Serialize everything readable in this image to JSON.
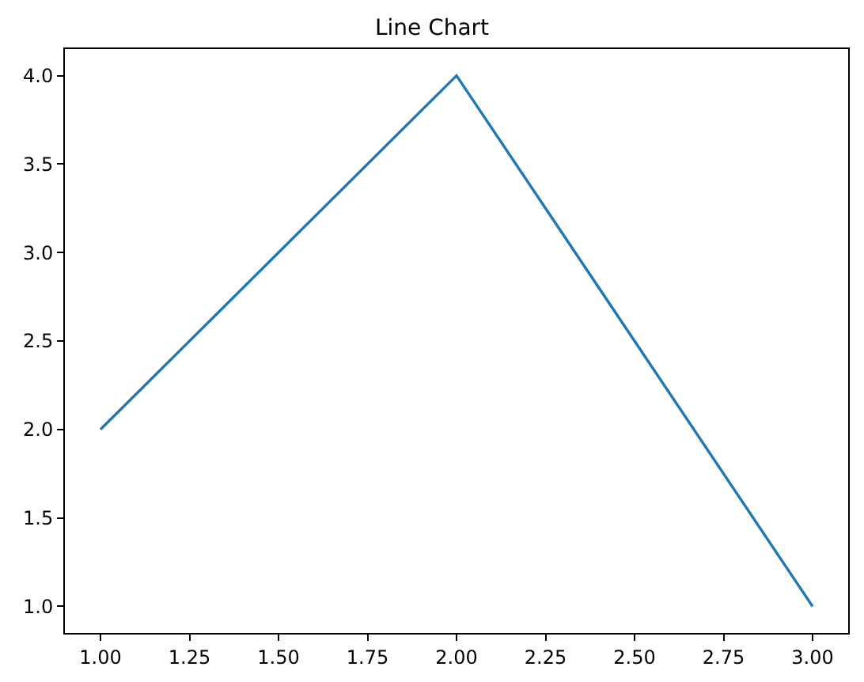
{
  "chart_data": {
    "type": "line",
    "title": "Line Chart",
    "x": [
      1,
      2,
      3
    ],
    "values": [
      2,
      4,
      1
    ],
    "color": "#1f77b4",
    "xlim": [
      0.9,
      3.1
    ],
    "ylim": [
      0.85,
      4.15
    ],
    "xticks": [
      {
        "value": 1,
        "label": "1.00"
      },
      {
        "value": 1.25,
        "label": "1.25"
      },
      {
        "value": 1.5,
        "label": "1.50"
      },
      {
        "value": 1.75,
        "label": "1.75"
      },
      {
        "value": 2,
        "label": "2.00"
      },
      {
        "value": 2.25,
        "label": "2.25"
      },
      {
        "value": 2.5,
        "label": "2.50"
      },
      {
        "value": 2.75,
        "label": "2.75"
      },
      {
        "value": 3,
        "label": "3.00"
      }
    ],
    "yticks": [
      {
        "value": 1,
        "label": "1.0"
      },
      {
        "value": 1.5,
        "label": "1.5"
      },
      {
        "value": 2,
        "label": "2.0"
      },
      {
        "value": 2.5,
        "label": "2.5"
      },
      {
        "value": 3,
        "label": "3.0"
      },
      {
        "value": 3.5,
        "label": "3.5"
      },
      {
        "value": 4,
        "label": "4.0"
      }
    ],
    "grid": false,
    "marker": "none",
    "line_style": "solid"
  }
}
